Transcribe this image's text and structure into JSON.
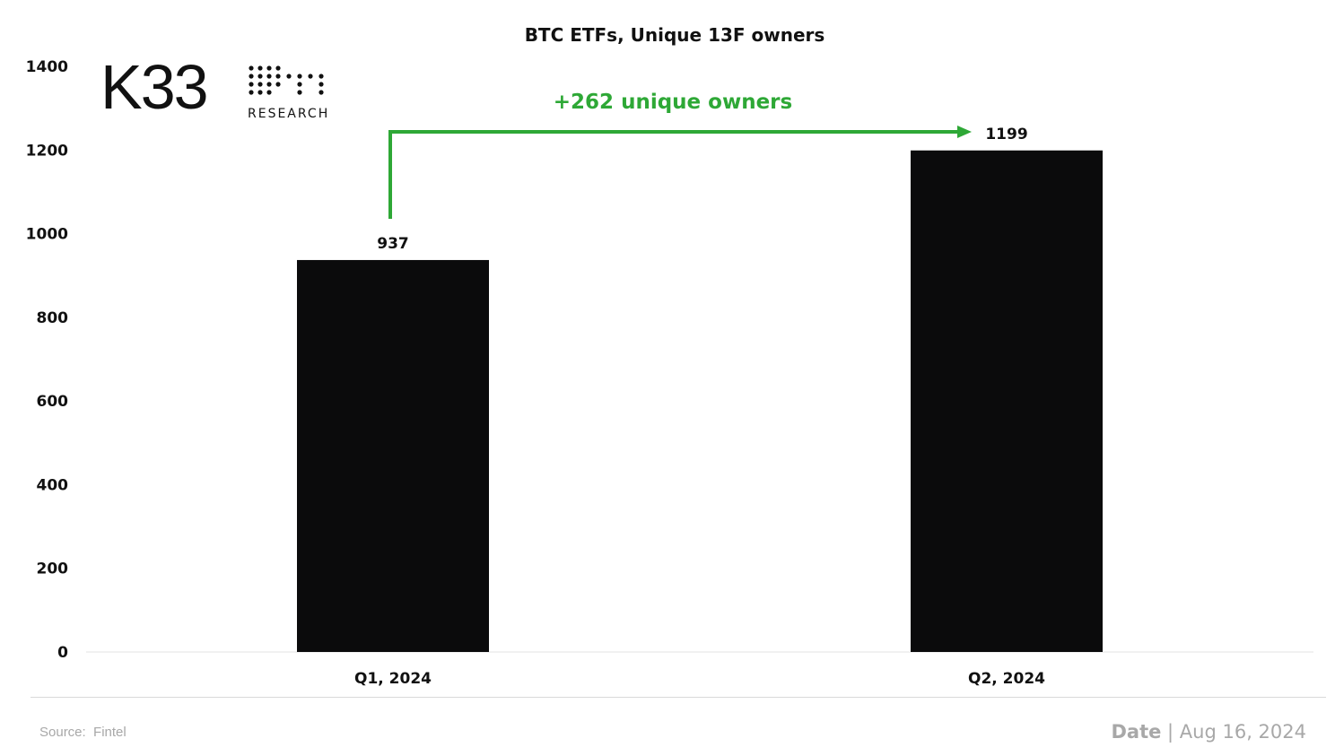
{
  "brand": {
    "name": "K33",
    "sub": "RESEARCH"
  },
  "footer": {
    "source": "Source:  Fintel",
    "date_label": "Date",
    "date_value": "Aug 16, 2024"
  },
  "annotation": {
    "text": "+262 unique owners",
    "color": "#2ea836"
  },
  "chart_data": {
    "type": "bar",
    "title": "BTC ETFs, Unique 13F owners",
    "categories": [
      "Q1, 2024",
      "Q2, 2024"
    ],
    "values": [
      937,
      1199
    ],
    "data_labels": [
      "937",
      "1199"
    ],
    "ylim": [
      0,
      1400
    ],
    "yticks": [
      0,
      200,
      400,
      600,
      800,
      1000,
      1200,
      1400
    ],
    "xlabel": "",
    "ylabel": "",
    "grid": false,
    "bar_color": "#0b0b0c"
  }
}
